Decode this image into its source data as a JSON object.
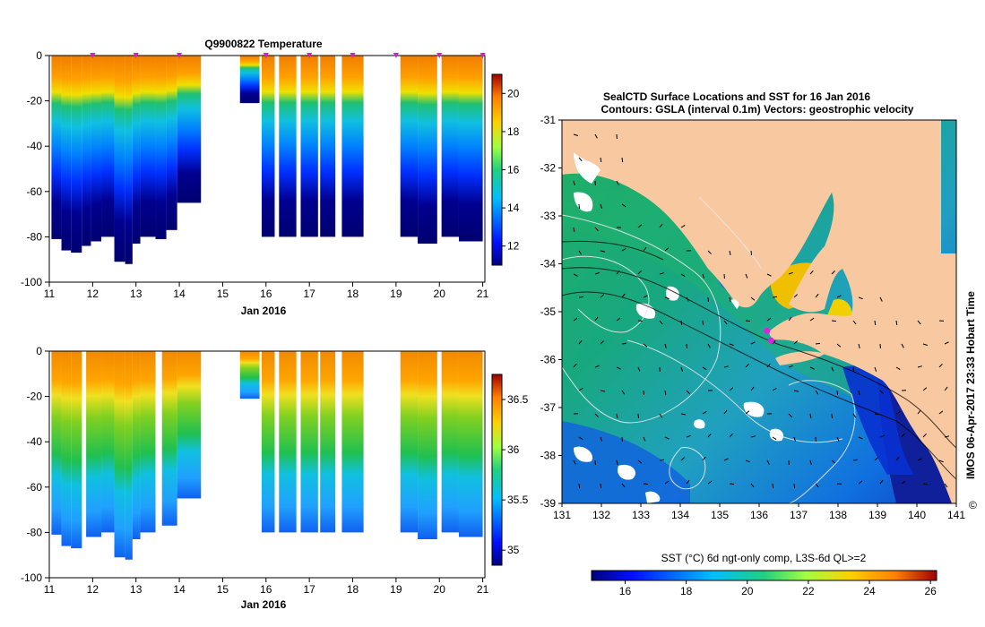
{
  "chart_data": [
    {
      "type": "heatmap",
      "panel": "temperature-section",
      "title": "Q9900822  Temperature",
      "x_axis_label": "Jan 2016",
      "x_ticks": [
        "11",
        "12",
        "13",
        "14",
        "15",
        "16",
        "17",
        "18",
        "19",
        "20",
        "21"
      ],
      "y_ticks": [
        "0",
        "-20",
        "-40",
        "-60",
        "-80",
        "-100"
      ],
      "ylim": [
        -100,
        0
      ],
      "xlim": [
        11,
        21.05
      ],
      "colorbar": {
        "ticks": [
          "12",
          "14",
          "16",
          "18",
          "20"
        ],
        "range": [
          11,
          21
        ]
      },
      "profile_markers_days": [
        12,
        13,
        14,
        16,
        17,
        18,
        19,
        20,
        21
      ],
      "profiles": [
        {
          "x0": 11.05,
          "x1": 11.28,
          "depth": -81
        },
        {
          "x0": 11.28,
          "x1": 11.5,
          "depth": -86
        },
        {
          "x0": 11.5,
          "x1": 11.75,
          "depth": -87
        },
        {
          "x0": 11.75,
          "x1": 11.96,
          "depth": -84
        },
        {
          "x0": 11.96,
          "x1": 12.2,
          "depth": -82
        },
        {
          "x0": 12.2,
          "x1": 12.5,
          "depth": -80
        },
        {
          "x0": 12.5,
          "x1": 12.75,
          "depth": -91
        },
        {
          "x0": 12.75,
          "x1": 12.92,
          "depth": -92
        },
        {
          "x0": 12.92,
          "x1": 13.1,
          "depth": -83
        },
        {
          "x0": 13.1,
          "x1": 13.45,
          "depth": -80
        },
        {
          "x0": 13.45,
          "x1": 13.7,
          "depth": -81
        },
        {
          "x0": 13.7,
          "x1": 13.95,
          "depth": -77
        },
        {
          "x0": 13.95,
          "x1": 14.5,
          "depth": -65
        },
        {
          "x0": 15.4,
          "x1": 15.85,
          "depth": -21
        },
        {
          "x0": 15.9,
          "x1": 16.2,
          "depth": -80
        },
        {
          "x0": 16.3,
          "x1": 16.7,
          "depth": -80
        },
        {
          "x0": 16.8,
          "x1": 17.2,
          "depth": -80
        },
        {
          "x0": 17.25,
          "x1": 17.6,
          "depth": -80
        },
        {
          "x0": 17.75,
          "x1": 18.25,
          "depth": -80
        },
        {
          "x0": 19.1,
          "x1": 19.5,
          "depth": -80
        },
        {
          "x0": 19.5,
          "x1": 19.95,
          "depth": -83
        },
        {
          "x0": 20.05,
          "x1": 20.45,
          "depth": -80
        },
        {
          "x0": 20.45,
          "x1": 21.0,
          "depth": -82
        }
      ]
    },
    {
      "type": "heatmap",
      "panel": "salinity-section",
      "title": "",
      "x_axis_label": "Jan 2016",
      "x_ticks": [
        "11",
        "12",
        "13",
        "14",
        "15",
        "16",
        "17",
        "18",
        "19",
        "20",
        "21"
      ],
      "y_ticks": [
        "0",
        "-20",
        "-40",
        "-60",
        "-80",
        "-100"
      ],
      "ylim": [
        -100,
        0
      ],
      "xlim": [
        11,
        21.05
      ],
      "colorbar": {
        "ticks": [
          "35",
          "35.5",
          "36",
          "36.5"
        ],
        "range": [
          34.85,
          36.75
        ]
      },
      "profiles": [
        {
          "x0": 11.05,
          "x1": 11.28,
          "depth": -81
        },
        {
          "x0": 11.28,
          "x1": 11.5,
          "depth": -86
        },
        {
          "x0": 11.5,
          "x1": 11.75,
          "depth": -87
        },
        {
          "x0": 11.85,
          "x1": 12.2,
          "depth": -82
        },
        {
          "x0": 12.2,
          "x1": 12.5,
          "depth": -80
        },
        {
          "x0": 12.5,
          "x1": 12.75,
          "depth": -91
        },
        {
          "x0": 12.75,
          "x1": 12.92,
          "depth": -92
        },
        {
          "x0": 12.92,
          "x1": 13.1,
          "depth": -83
        },
        {
          "x0": 13.1,
          "x1": 13.45,
          "depth": -80
        },
        {
          "x0": 13.6,
          "x1": 13.95,
          "depth": -77
        },
        {
          "x0": 13.95,
          "x1": 14.5,
          "depth": -65
        },
        {
          "x0": 15.4,
          "x1": 15.85,
          "depth": -21
        },
        {
          "x0": 15.9,
          "x1": 16.2,
          "depth": -80
        },
        {
          "x0": 16.3,
          "x1": 16.7,
          "depth": -80
        },
        {
          "x0": 16.8,
          "x1": 17.2,
          "depth": -80
        },
        {
          "x0": 17.25,
          "x1": 17.6,
          "depth": -80
        },
        {
          "x0": 17.75,
          "x1": 18.25,
          "depth": -80
        },
        {
          "x0": 19.1,
          "x1": 19.5,
          "depth": -80
        },
        {
          "x0": 19.5,
          "x1": 19.95,
          "depth": -83
        },
        {
          "x0": 20.05,
          "x1": 20.45,
          "depth": -80
        },
        {
          "x0": 20.45,
          "x1": 21.0,
          "depth": -82
        }
      ]
    },
    {
      "type": "heatmap",
      "panel": "sst-map",
      "title": "SealCTD Surface Locations and SST for 16 Jan 2016",
      "subtitle": "Contours: GSLA (interval 0.1m) Vectors: geostrophic velocity",
      "x_ticks": [
        "131",
        "132",
        "133",
        "134",
        "135",
        "136",
        "137",
        "138",
        "139",
        "140",
        "141"
      ],
      "y_ticks": [
        "-31",
        "-32",
        "-33",
        "-34",
        "-35",
        "-36",
        "-37",
        "-38",
        "-39"
      ],
      "xlim": [
        131,
        141
      ],
      "ylim": [
        -39,
        -31
      ],
      "colorbar_label": "SST (°C) 6d ngt-only comp, L3S-6d QL>=2",
      "colorbar": {
        "ticks": [
          "16",
          "18",
          "20",
          "22",
          "24",
          "26"
        ],
        "range": [
          14.9,
          26.2
        ]
      },
      "credit": "IMOS 06-Apr-2017 23:33 Hobart Time",
      "copyright_symbol": "©",
      "seal_locations": {
        "lon": [
          136.2,
          136.3
        ],
        "lat": [
          -35.4,
          -35.6
        ]
      }
    }
  ]
}
